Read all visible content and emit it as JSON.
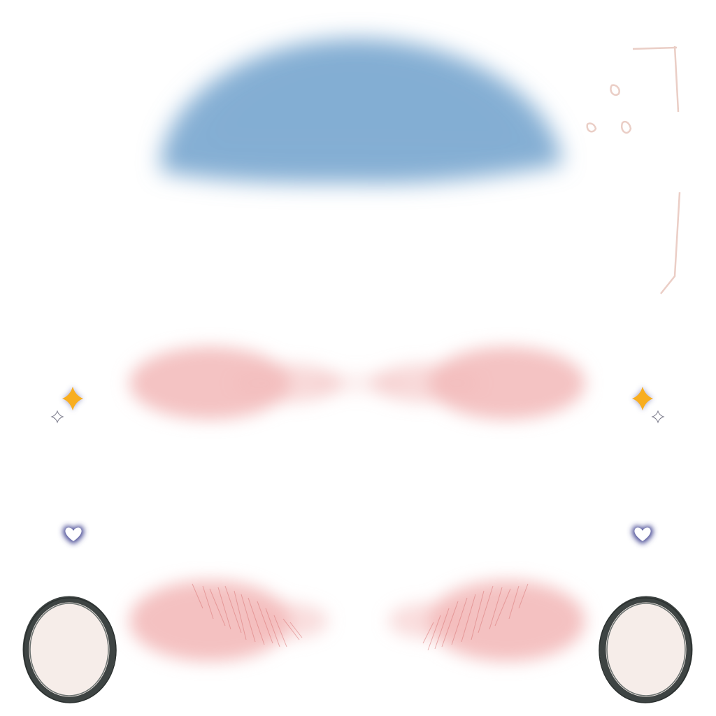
{
  "texture": {
    "background": "#ffffff",
    "colors": {
      "shadow_blue": "#7eabd2",
      "blush_pink": "#f3bcbc",
      "blush_stroke": "#d97878",
      "sparkle_gold": "#f8ae20",
      "sparkle_glow": "#5a5fa8",
      "heart_fill": "#ffffff",
      "heart_glow": "#3f4290",
      "highlight_fill": "#f6ede9",
      "highlight_ring": "#3e4443",
      "sketch_line": "#e6c2b8"
    },
    "elements": [
      "forehead-shadow",
      "blush-upper-left",
      "blush-upper-right",
      "blush-lower-left",
      "blush-lower-right",
      "sparkle-left",
      "sparkle-right",
      "heart-left",
      "heart-right",
      "eye-highlight-left",
      "eye-highlight-right",
      "sketch-marks"
    ]
  }
}
